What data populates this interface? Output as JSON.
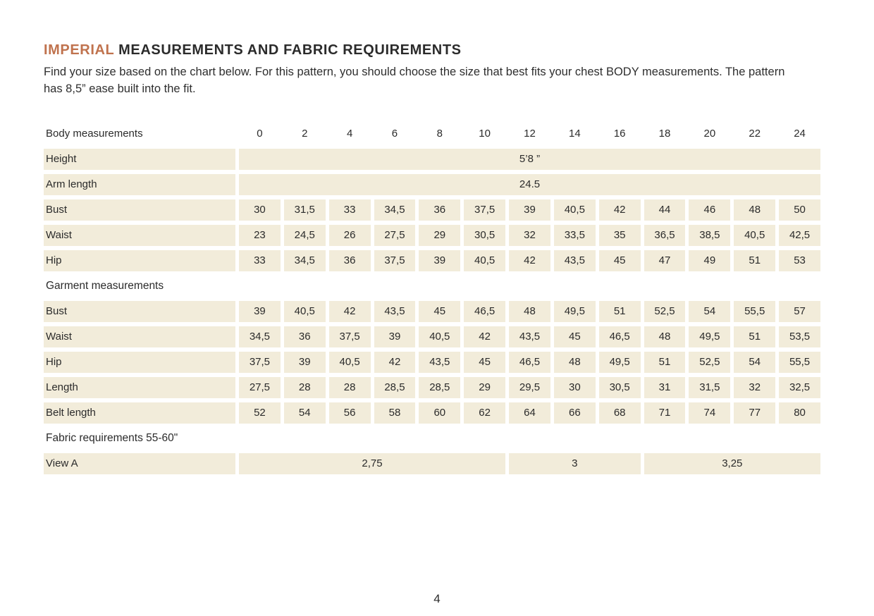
{
  "header": {
    "title_accent": "IMPERIAL",
    "title_rest": " MEASUREMENTS AND FABRIC REQUIREMENTS",
    "intro": "Find your size based on the chart below. For this pattern, you should choose the size that best fits your chest BODY measurements.  The pattern has 8,5” ease built into the fit."
  },
  "table": {
    "sizes": [
      "0",
      "2",
      "4",
      "6",
      "8",
      "10",
      "12",
      "14",
      "16",
      "18",
      "20",
      "22",
      "24"
    ],
    "rows": [
      {
        "type": "header",
        "label": "Body measurements"
      },
      {
        "type": "span",
        "label": "Height",
        "value": "5’8 ”"
      },
      {
        "type": "span",
        "label": "Arm length",
        "value": "24.5"
      },
      {
        "type": "values",
        "label": "Bust",
        "cells": [
          "30",
          "31,5",
          "33",
          "34,5",
          "36",
          "37,5",
          "39",
          "40,5",
          "42",
          "44",
          "46",
          "48",
          "50"
        ]
      },
      {
        "type": "values",
        "label": "Waist",
        "cells": [
          "23",
          "24,5",
          "26",
          "27,5",
          "29",
          "30,5",
          "32",
          "33,5",
          "35",
          "36,5",
          "38,5",
          "40,5",
          "42,5"
        ]
      },
      {
        "type": "values",
        "label": "Hip",
        "cells": [
          "33",
          "34,5",
          "36",
          "37,5",
          "39",
          "40,5",
          "42",
          "43,5",
          "45",
          "47",
          "49",
          "51",
          "53"
        ]
      },
      {
        "type": "section",
        "label": "Garment measurements"
      },
      {
        "type": "values",
        "label": "Bust",
        "cells": [
          "39",
          "40,5",
          "42",
          "43,5",
          "45",
          "46,5",
          "48",
          "49,5",
          "51",
          "52,5",
          "54",
          "55,5",
          "57"
        ]
      },
      {
        "type": "values",
        "label": "Waist",
        "cells": [
          "34,5",
          "36",
          "37,5",
          "39",
          "40,5",
          "42",
          "43,5",
          "45",
          "46,5",
          "48",
          "49,5",
          "51",
          "53,5"
        ]
      },
      {
        "type": "values",
        "label": "Hip",
        "cells": [
          "37,5",
          "39",
          "40,5",
          "42",
          "43,5",
          "45",
          "46,5",
          "48",
          "49,5",
          "51",
          "52,5",
          "54",
          "55,5"
        ]
      },
      {
        "type": "values",
        "label": "Length",
        "cells": [
          "27,5",
          "28",
          "28",
          "28,5",
          "28,5",
          "29",
          "29,5",
          "30",
          "30,5",
          "31",
          "31,5",
          "32",
          "32,5"
        ]
      },
      {
        "type": "values",
        "label": "Belt length",
        "cells": [
          "52",
          "54",
          "56",
          "58",
          "60",
          "62",
          "64",
          "66",
          "68",
          "71",
          "74",
          "77",
          "80"
        ]
      },
      {
        "type": "section",
        "label": "Fabric requirements 55-60\""
      },
      {
        "type": "segments",
        "label": "View A",
        "segments": [
          {
            "value": "2,75",
            "span": 6
          },
          {
            "value": "3",
            "span": 3
          },
          {
            "value": "3,25",
            "span": 4
          }
        ]
      }
    ]
  },
  "footer": {
    "page_number": "4"
  },
  "colors": {
    "accent": "#c0734e",
    "cell_bg": "#f2ecda",
    "text": "#2b2b2b"
  }
}
